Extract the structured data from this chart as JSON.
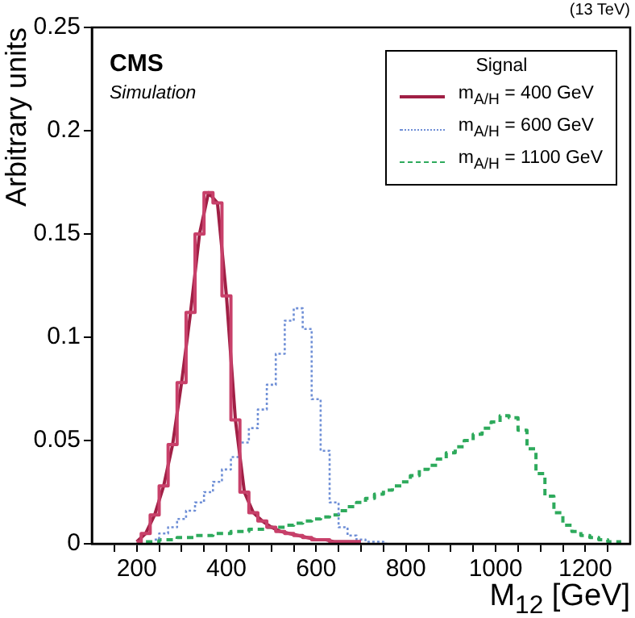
{
  "chart_data": {
    "type": "step",
    "xlabel": "M$_{12}$ [GeV]",
    "ylabel": "Arbitrary units",
    "legend_title": "Signal",
    "legend": "top right",
    "marker": "none",
    "annotations": [
      "CMS",
      "Simulation",
      "(13 TeV)"
    ],
    "xlim": [
      100,
      1300
    ],
    "ylim": [
      0,
      0.25
    ],
    "xticks": [
      {
        "value": 150,
        "label": null
      },
      200,
      {
        "value": 250,
        "label": null
      },
      {
        "value": 300,
        "label": null
      },
      {
        "value": 350,
        "label": null
      },
      400,
      {
        "value": 450,
        "label": null
      },
      {
        "value": 500,
        "label": null
      },
      {
        "value": 550,
        "label": null
      },
      600,
      {
        "value": 650,
        "label": null
      },
      {
        "value": 700,
        "label": null
      },
      {
        "value": 750,
        "label": null
      },
      800,
      {
        "value": 850,
        "label": null
      },
      {
        "value": 900,
        "label": null
      },
      {
        "value": 950,
        "label": null
      },
      1000,
      {
        "value": 1050,
        "label": null
      },
      {
        "value": 1100,
        "label": null
      },
      {
        "value": 1150,
        "label": null
      },
      1200,
      {
        "value": 1250,
        "label": null
      }
    ],
    "yticks": [
      0,
      0.05,
      0.1,
      0.15,
      0.2,
      0.25
    ],
    "series": [
      {
        "type": "step",
        "color": "#c8406a",
        "line_style": "solid",
        "x": [
          200,
          220,
          240,
          260,
          280,
          300,
          320,
          340,
          360,
          380,
          400,
          420,
          440,
          460,
          480,
          500,
          520,
          540,
          560,
          580,
          600,
          620,
          640,
          660,
          680,
          700
        ],
        "values": [
          0.001,
          0.005,
          0.014,
          0.028,
          0.048,
          0.078,
          0.112,
          0.15,
          0.17,
          0.165,
          0.12,
          0.06,
          0.025,
          0.015,
          0.011,
          0.008,
          0.006,
          0.005,
          0.004,
          0.003,
          0.002,
          0.002,
          0.001,
          0.001,
          0.001,
          0.001
        ]
      },
      {
        "type": "line",
        "name": "m$_{A/H}$ = 400 GeV",
        "color": "#a01f45",
        "line_style": "solid",
        "x": [
          200,
          220,
          240,
          260,
          280,
          300,
          320,
          340,
          360,
          380,
          400,
          420,
          440,
          460,
          480,
          500,
          520,
          540,
          560,
          580,
          600,
          620,
          640,
          660,
          680,
          700
        ],
        "values": [
          0.001,
          0.005,
          0.014,
          0.028,
          0.048,
          0.078,
          0.112,
          0.15,
          0.17,
          0.165,
          0.12,
          0.06,
          0.025,
          0.015,
          0.011,
          0.008,
          0.006,
          0.005,
          0.004,
          0.003,
          0.002,
          0.002,
          0.001,
          0.001,
          0.001,
          0.001
        ]
      },
      {
        "type": "step",
        "name": "m$_{A/H}$ = 600 GeV",
        "color": "#6f8fd6",
        "line_style": "dotted",
        "x": [
          240,
          260,
          280,
          300,
          320,
          340,
          360,
          380,
          400,
          420,
          440,
          460,
          480,
          500,
          520,
          540,
          560,
          580,
          600,
          620,
          640,
          660,
          680,
          700,
          720,
          740,
          760
        ],
        "values": [
          0.002,
          0.005,
          0.008,
          0.012,
          0.016,
          0.02,
          0.025,
          0.03,
          0.036,
          0.042,
          0.049,
          0.056,
          0.065,
          0.077,
          0.092,
          0.108,
          0.114,
          0.104,
          0.07,
          0.045,
          0.02,
          0.008,
          0.004,
          0.002,
          0.001,
          0.001,
          0
        ]
      },
      {
        "type": "step",
        "name": "m$_{A/H}$ = 1100 GeV",
        "color": "#2eaa5c",
        "line_style": "dashed",
        "x": [
          200,
          220,
          240,
          260,
          280,
          300,
          320,
          340,
          360,
          380,
          400,
          420,
          440,
          460,
          480,
          500,
          520,
          540,
          560,
          580,
          600,
          620,
          640,
          660,
          680,
          700,
          720,
          740,
          760,
          780,
          800,
          820,
          840,
          860,
          880,
          900,
          920,
          940,
          960,
          980,
          1000,
          1020,
          1040,
          1060,
          1080,
          1100,
          1120,
          1140,
          1160,
          1180,
          1200,
          1220,
          1240,
          1260,
          1280
        ],
        "values": [
          0,
          0.001,
          0.001,
          0.002,
          0.002,
          0.003,
          0.003,
          0.004,
          0.004,
          0.005,
          0.005,
          0.006,
          0.006,
          0.007,
          0.007,
          0.008,
          0.008,
          0.009,
          0.01,
          0.011,
          0.012,
          0.013,
          0.014,
          0.016,
          0.018,
          0.02,
          0.022,
          0.024,
          0.026,
          0.028,
          0.03,
          0.033,
          0.036,
          0.038,
          0.041,
          0.044,
          0.047,
          0.05,
          0.053,
          0.056,
          0.059,
          0.062,
          0.061,
          0.055,
          0.046,
          0.034,
          0.023,
          0.015,
          0.009,
          0.006,
          0.004,
          0.003,
          0.002,
          0.001,
          0.001
        ]
      }
    ]
  }
}
